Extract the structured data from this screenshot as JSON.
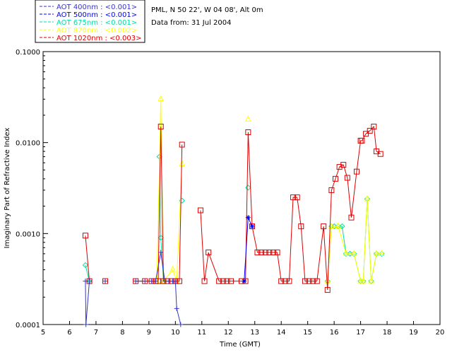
{
  "chart_data": {
    "type": "line",
    "title": "PML, N 50 22', W 04 08', Alt 0m",
    "subtitle": "Data from: 31 Jul 2004",
    "xlabel": "Time (GMT)",
    "ylabel": "Imaginary Part of Refractive Index",
    "xlim": [
      5,
      20
    ],
    "ylim": [
      0.0001,
      0.1
    ],
    "yscale": "log",
    "x_ticks": [
      5,
      6,
      7,
      8,
      9,
      10,
      11,
      12,
      13,
      14,
      15,
      16,
      17,
      18,
      19,
      20
    ],
    "y_ticks": [
      {
        "value": 0.0001,
        "label": "0.0001"
      },
      {
        "value": 0.001,
        "label": "0.0010"
      },
      {
        "value": 0.01,
        "label": "0.0100"
      },
      {
        "value": 0.1,
        "label": "0.1000"
      }
    ],
    "legend_position": "top-left",
    "series": [
      {
        "name": "AOT 400nm : <0.001>",
        "color": "#3333cc",
        "marker": "plus",
        "x": [
          6.6,
          6.62,
          6.75,
          7.35,
          8.5,
          8.85,
          9.1,
          9.25,
          9.45,
          9.6,
          9.75,
          9.9,
          10.0,
          10.05,
          10.2
        ],
        "y": [
          0.0003,
          0.0001,
          0.0003,
          0.0003,
          0.0003,
          0.0003,
          0.0003,
          0.0003,
          0.00062,
          0.0003,
          0.0003,
          0.0003,
          0.0003,
          0.00015,
          0.0001
        ]
      },
      {
        "name": "AOT 500nm : <0.001>",
        "color": "#0000ff",
        "marker": "asterisk",
        "x": [
          12.6,
          12.75,
          12.9
        ],
        "y": [
          0.0003,
          0.0015,
          0.0012
        ]
      },
      {
        "name": "AOT 675nm : <0.001>",
        "color": "#00e0a0",
        "marker": "diamond",
        "x": [
          6.6,
          6.75,
          9.4,
          9.45,
          9.55,
          10.25,
          12.75,
          15.75,
          15.9,
          16.0,
          16.15,
          16.3,
          16.45,
          16.6,
          16.75,
          17.0,
          17.1,
          17.25,
          17.4,
          17.6,
          17.8
        ],
        "y": [
          0.00045,
          0.0003,
          0.007,
          0.0009,
          0.0003,
          0.0023,
          0.0032,
          0.0003,
          0.0012,
          0.0012,
          0.0012,
          0.0012,
          0.0006,
          0.0006,
          0.0006,
          0.0003,
          0.0003,
          0.0024,
          0.0003,
          0.0006,
          0.0006
        ]
      },
      {
        "name": "AOT 870nm : <0.002>",
        "color": "#ffff00",
        "marker": "triangle",
        "x": [
          9.3,
          9.45,
          9.55,
          9.9,
          10.05,
          10.25,
          12.75,
          15.75,
          15.9,
          16.15,
          16.45,
          16.75,
          17.0,
          17.1,
          17.25,
          17.4,
          17.6,
          17.8
        ],
        "y": [
          0.0003,
          0.03,
          0.0003,
          0.0004,
          0.0003,
          0.0058,
          0.018,
          0.0003,
          0.0012,
          0.0012,
          0.0006,
          0.0006,
          0.0003,
          0.0003,
          0.0024,
          0.0003,
          0.0006,
          0.0006
        ]
      },
      {
        "name": "AOT 1020nm : <0.003>",
        "color": "#dd0000",
        "marker": "square",
        "x": [
          6.6,
          6.75,
          7.35,
          8.5,
          8.85,
          9.1,
          9.25,
          9.35,
          9.45,
          9.55,
          9.7,
          9.85,
          10.0,
          10.15,
          10.25,
          10.95,
          11.1,
          11.25,
          11.65,
          11.8,
          11.95,
          12.1,
          12.5,
          12.65,
          12.75,
          12.9,
          13.1,
          13.25,
          13.4,
          13.55,
          13.7,
          13.85,
          14.0,
          14.15,
          14.3,
          14.45,
          14.6,
          14.75,
          14.9,
          15.05,
          15.2,
          15.35,
          15.6,
          15.75,
          15.9,
          16.05,
          16.2,
          16.35,
          16.5,
          16.65,
          16.85,
          17.0,
          17.05,
          17.2,
          17.35,
          17.5,
          17.6,
          17.75
        ],
        "y": [
          0.00095,
          0.0003,
          0.0003,
          0.0003,
          0.0003,
          0.0003,
          0.0003,
          0.0003,
          0.015,
          0.0003,
          0.0003,
          0.0003,
          0.0003,
          0.0003,
          0.0095,
          0.0018,
          0.0003,
          0.00062,
          0.0003,
          0.0003,
          0.0003,
          0.0003,
          0.0003,
          0.0003,
          0.013,
          0.0012,
          0.00062,
          0.00062,
          0.00062,
          0.00062,
          0.00062,
          0.00062,
          0.0003,
          0.0003,
          0.0003,
          0.0025,
          0.0025,
          0.0012,
          0.0003,
          0.0003,
          0.0003,
          0.0003,
          0.0012,
          0.00024,
          0.003,
          0.004,
          0.0054,
          0.0057,
          0.0041,
          0.0015,
          0.0048,
          0.0105,
          0.0105,
          0.0125,
          0.0135,
          0.015,
          0.008,
          0.0075
        ]
      }
    ]
  }
}
